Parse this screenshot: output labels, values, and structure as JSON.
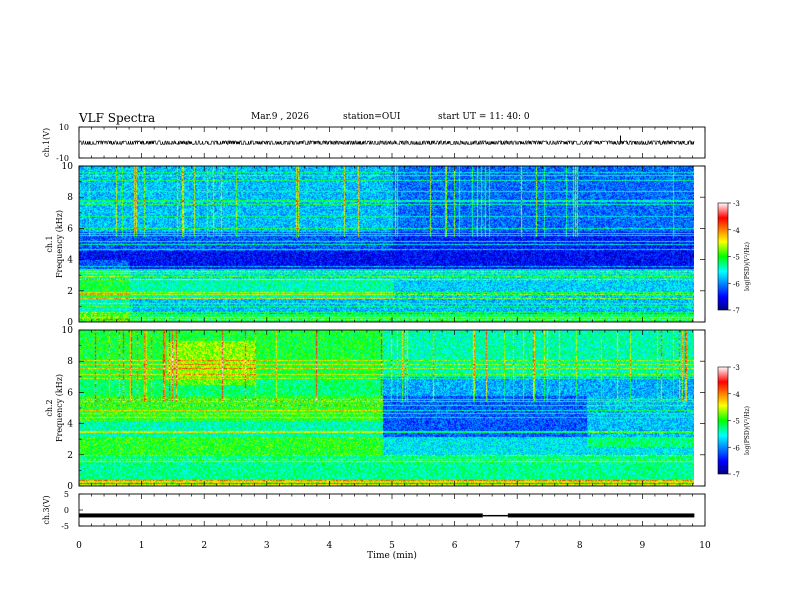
{
  "header": {
    "title": "VLF Spectra",
    "date": "Mar.9  , 2026",
    "station": "station=OUI",
    "start": "start  UT  =   11: 40: 0"
  },
  "chart_data": [
    {
      "type": "line",
      "panel": "ch1-waveform",
      "ylabel": "ch.1(V)",
      "ylim": [
        -10,
        10
      ],
      "yticks": [
        10,
        -10
      ],
      "xlim": [
        0,
        10
      ],
      "series": [
        {
          "name": "ch.1",
          "baseline": -0.1,
          "amplitude": 1.2,
          "x_end": 9.83,
          "spikes": [
            [
              8.65,
              4.5
            ]
          ]
        }
      ]
    },
    {
      "type": "heatmap",
      "panel": "ch1-spectrogram",
      "ylabel_line1": "ch.1",
      "ylabel_line2": "Frequency  (kHz)",
      "ylim": [
        0,
        10
      ],
      "yticks": [
        0,
        2,
        4,
        6,
        8,
        10
      ],
      "xlim": [
        0,
        10
      ],
      "x_end": 9.83,
      "colorbar": {
        "label": "log(PSD)(V²/Hz)",
        "range": [
          -7,
          -3
        ],
        "ticks": [
          -3,
          -4,
          -5,
          -6,
          -7
        ]
      }
    },
    {
      "type": "heatmap",
      "panel": "ch2-spectrogram",
      "ylabel_line1": "ch.2",
      "ylabel_line2": "Frequency  (kHz)",
      "ylim": [
        0,
        10
      ],
      "yticks": [
        0,
        2,
        4,
        6,
        8,
        10
      ],
      "xlim": [
        0,
        10
      ],
      "x_end": 9.83,
      "colorbar": {
        "label": "log(PSD)(V²/Hz)",
        "range": [
          -7,
          -3
        ],
        "ticks": [
          -3,
          -4,
          -5,
          -6,
          -7
        ]
      }
    },
    {
      "type": "line",
      "panel": "ch3-waveform",
      "ylabel": "ch.3(V)",
      "ylim": [
        -5,
        5
      ],
      "yticks": [
        5,
        0,
        -5
      ],
      "xlim": [
        0,
        10
      ],
      "xlabel": "Time  (min)",
      "xticks": [
        0,
        1,
        2,
        3,
        4,
        5,
        6,
        7,
        8,
        9,
        10
      ],
      "series": [
        {
          "name": "ch.3",
          "value": -1.7,
          "x_end": 9.83,
          "gap": [
            6.45,
            6.85
          ]
        }
      ]
    }
  ]
}
